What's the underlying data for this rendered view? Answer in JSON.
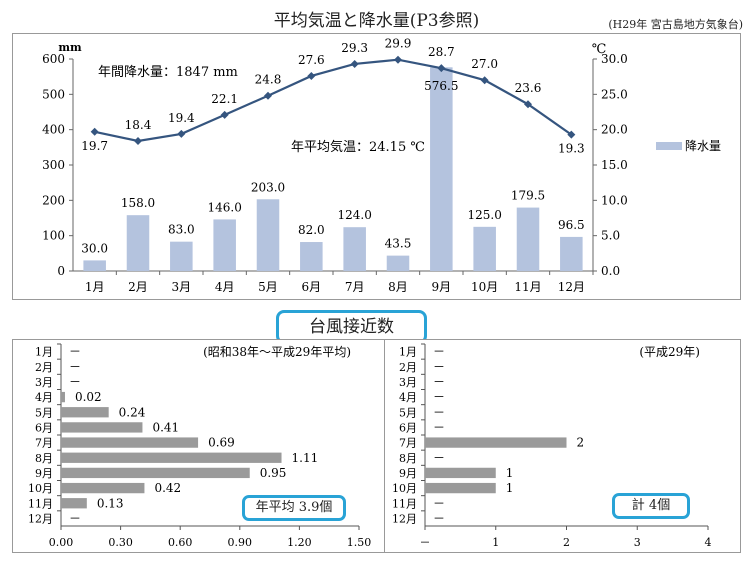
{
  "title": "平均気温と降水量(P3参照)",
  "source": "(H29年 宮古島地方気象台)",
  "typhoon_title": "台風接近数",
  "chart_data": [
    {
      "type": "bar+line",
      "categories": [
        "1月",
        "2月",
        "3月",
        "4月",
        "5月",
        "6月",
        "7月",
        "8月",
        "9月",
        "10月",
        "11月",
        "12月"
      ],
      "series": [
        {
          "name": "降水量",
          "type": "bar",
          "axis": "left",
          "values": [
            30.0,
            158.0,
            83.0,
            146.0,
            203.0,
            82.0,
            124.0,
            43.5,
            576.5,
            125.0,
            179.5,
            96.5
          ],
          "labels": [
            "30.0",
            "158.0",
            "83.0",
            "146.0",
            "203.0",
            "82.0",
            "124.0",
            "43.5",
            "576.5",
            "125.0",
            "179.5",
            "96.5"
          ],
          "color": "#b4c3de"
        },
        {
          "type": "line",
          "axis": "right",
          "values": [
            19.7,
            18.4,
            19.4,
            22.1,
            24.8,
            27.6,
            29.3,
            29.9,
            28.7,
            27.0,
            23.6,
            19.3
          ],
          "labels": [
            "19.7",
            "18.4",
            "19.4",
            "22.1",
            "24.8",
            "27.6",
            "29.3",
            "29.9",
            "28.7",
            "27.0",
            "23.6",
            "19.3"
          ],
          "color": "#35557f"
        }
      ],
      "ylabel_left": "mm",
      "ylabel_right": "℃",
      "ylim_left": [
        0,
        600
      ],
      "ylim_right": [
        0,
        30
      ],
      "yticks_left": [
        "0",
        "100",
        "200",
        "300",
        "400",
        "500",
        "600"
      ],
      "yticks_right": [
        "0.0",
        "5.0",
        "10.0",
        "15.0",
        "20.0",
        "25.0",
        "30.0"
      ],
      "annotations": [
        "年間降水量：1847 mm",
        "年平均気温：24.15 ℃"
      ],
      "legend": "right"
    },
    {
      "type": "bar",
      "orientation": "horizontal",
      "subtitle": "(昭和38年～平成29年平均)",
      "categories": [
        "1月",
        "2月",
        "3月",
        "4月",
        "5月",
        "6月",
        "7月",
        "8月",
        "9月",
        "10月",
        "11月",
        "12月"
      ],
      "values": [
        0,
        0,
        0,
        0.02,
        0.24,
        0.41,
        0.69,
        1.11,
        0.95,
        0.42,
        0.13,
        0
      ],
      "labels": [
        "－",
        "－",
        "－",
        "0.02",
        "0.24",
        "0.41",
        "0.69",
        "1.11",
        "0.95",
        "0.42",
        "0.13",
        "－"
      ],
      "xlim": [
        0,
        1.5
      ],
      "xticks": [
        "0.00",
        "0.30",
        "0.60",
        "0.90",
        "1.20",
        "1.50"
      ],
      "note": "年平均 3.9個",
      "color": "#9a9a9a"
    },
    {
      "type": "bar",
      "orientation": "horizontal",
      "subtitle": "(平成29年)",
      "categories": [
        "1月",
        "2月",
        "3月",
        "4月",
        "5月",
        "6月",
        "7月",
        "8月",
        "9月",
        "10月",
        "11月",
        "12月"
      ],
      "values": [
        0,
        0,
        0,
        0,
        0,
        0,
        2,
        0,
        1,
        1,
        0,
        0
      ],
      "labels": [
        "－",
        "－",
        "－",
        "－",
        "－",
        "－",
        "2",
        "－",
        "1",
        "1",
        "－",
        "－"
      ],
      "xlim": [
        0,
        4
      ],
      "xticks": [
        "－",
        "1",
        "2",
        "3",
        "4"
      ],
      "note": "計 4個",
      "color": "#9a9a9a"
    }
  ]
}
